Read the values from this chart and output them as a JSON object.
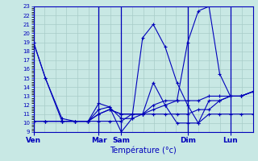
{
  "xlabel": "Température (°c)",
  "ylim": [
    9,
    23
  ],
  "yticks": [
    9,
    10,
    11,
    12,
    13,
    14,
    15,
    16,
    17,
    18,
    19,
    20,
    21,
    22,
    23
  ],
  "xtick_labels": [
    "Ven",
    "Mar",
    "Sam",
    "Dim",
    "Lun"
  ],
  "xtick_positions": [
    0,
    55,
    74,
    130,
    166
  ],
  "xlim": [
    0,
    185
  ],
  "background_color": "#c8e8e4",
  "grid_color": "#a8ccc8",
  "line_color": "#0000bb",
  "lines_x": [
    [
      0,
      10,
      24,
      35,
      46,
      55,
      64,
      74,
      83,
      92,
      101,
      111,
      121,
      130,
      139,
      148,
      157,
      166,
      175,
      185
    ],
    [
      0,
      10,
      24,
      35,
      46,
      55,
      64,
      74,
      83,
      92,
      101,
      111,
      121,
      130,
      139,
      148,
      157,
      166,
      175,
      185
    ],
    [
      0,
      10,
      24,
      35,
      46,
      55,
      64,
      74,
      83,
      92,
      101,
      111,
      121,
      130,
      139,
      148,
      157,
      166,
      175,
      185
    ],
    [
      0,
      10,
      24,
      35,
      46,
      55,
      64,
      74,
      83,
      92,
      101,
      111,
      121,
      130,
      139,
      148,
      157,
      166,
      175,
      185
    ],
    [
      0,
      10,
      24,
      35,
      46,
      55,
      64,
      74,
      83,
      92,
      101,
      111,
      121,
      130,
      139,
      148,
      157,
      166,
      175,
      185
    ]
  ],
  "lines_y": [
    [
      19,
      15,
      10.2,
      10.2,
      10.2,
      10.2,
      10.2,
      10.2,
      11.0,
      11.0,
      11.0,
      11.0,
      11.0,
      11.0,
      11.5,
      11.5,
      12.5,
      13.0,
      13.0,
      13.5
    ],
    [
      19,
      15,
      10.5,
      10.2,
      10.2,
      12.2,
      11.8,
      9.0,
      10.5,
      19.5,
      21.0,
      18.5,
      14.5,
      12.0,
      10.0,
      11.0,
      11.0,
      11.0,
      11.0,
      11.0
    ],
    [
      10.2,
      10.2,
      10.2,
      10.2,
      10.2,
      11.5,
      11.8,
      10.5,
      10.5,
      11.0,
      14.5,
      12.0,
      10.0,
      10.0,
      10.0,
      12.5,
      12.5,
      13.0,
      13.0,
      13.5
    ],
    [
      10.2,
      10.2,
      10.2,
      10.2,
      10.2,
      11.0,
      11.5,
      11.0,
      11.0,
      11.0,
      11.5,
      12.0,
      12.5,
      19.0,
      22.5,
      23.0,
      15.5,
      13.0,
      13.0,
      13.5
    ],
    [
      10.2,
      10.2,
      10.2,
      10.2,
      10.2,
      11.0,
      11.5,
      11.0,
      11.0,
      11.0,
      12.0,
      12.5,
      12.5,
      12.5,
      12.5,
      13.0,
      13.0,
      13.0,
      13.0,
      13.5
    ]
  ],
  "vline_positions": [
    0,
    55,
    74,
    130,
    166
  ],
  "num_grid_x": 20
}
